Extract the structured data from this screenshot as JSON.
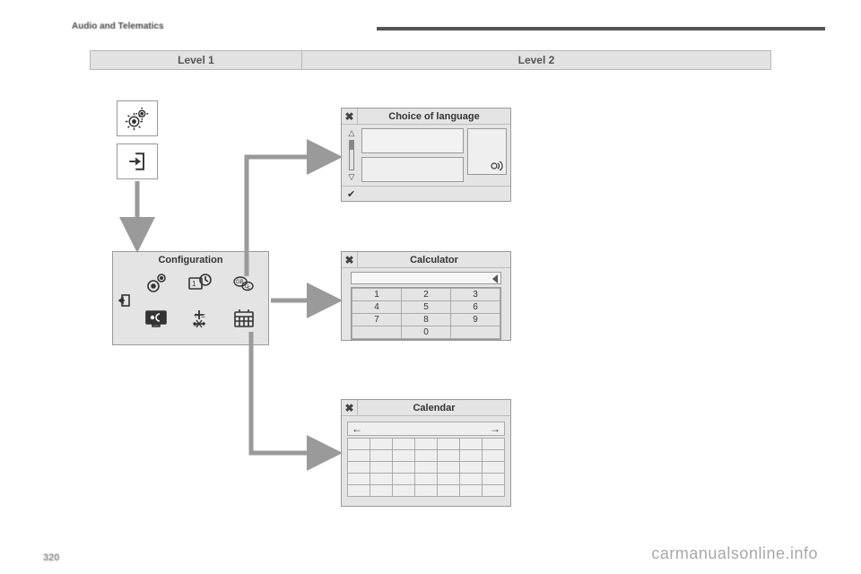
{
  "colors": {
    "panel_bg": "#e4e4e4",
    "panel_border": "#999999",
    "arrow": "#9a9a9a",
    "text": "#333333",
    "page_bg": "#ffffff",
    "level_bg": "#e2e2e2"
  },
  "header": {
    "section": "Audio and Telematics"
  },
  "levels": {
    "col1": "Level 1",
    "col2": "Level 2"
  },
  "config": {
    "title": "Configuration"
  },
  "lang_panel": {
    "title": "Choice of language",
    "close": "✖",
    "confirm": "✔"
  },
  "calc_panel": {
    "title": "Calculator",
    "close": "✖",
    "keys": [
      [
        "1",
        "2",
        "3"
      ],
      [
        "4",
        "5",
        "6"
      ],
      [
        "7",
        "8",
        "9"
      ],
      [
        "",
        "0",
        ""
      ]
    ]
  },
  "cal_panel": {
    "title": "Calendar",
    "close": "✖",
    "prev": "←",
    "next": "→",
    "cols": 7,
    "rows": 5
  },
  "scroll": {
    "up": "△",
    "down": "▽"
  },
  "watermark": "carmanualsonline.info",
  "pagenum": "320"
}
